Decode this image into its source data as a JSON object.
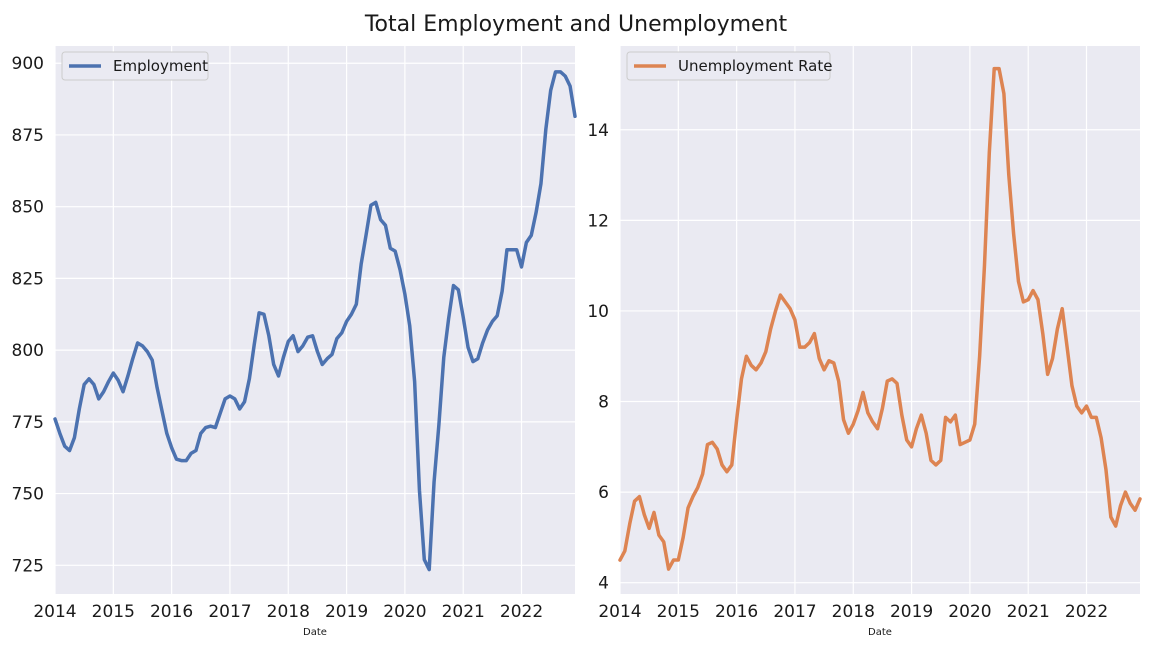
{
  "title": "Total Employment and Unemployment",
  "chart_data": [
    {
      "type": "line",
      "legend_position": "top-left",
      "xlabel": "Date",
      "ylabel": "",
      "grid": true,
      "xlim": [
        2014.0,
        2022.917
      ],
      "ylim": [
        715,
        906
      ],
      "xticks": [
        2014,
        2015,
        2016,
        2017,
        2018,
        2019,
        2020,
        2021,
        2022
      ],
      "xtick_labels": [
        "2014",
        "2015",
        "2016",
        "2017",
        "2018",
        "2019",
        "2020",
        "2021",
        "2022"
      ],
      "yticks": [
        725,
        750,
        775,
        800,
        825,
        850,
        875,
        900
      ],
      "ytick_labels": [
        "725",
        "750",
        "775",
        "800",
        "825",
        "850",
        "875",
        "900"
      ],
      "series": [
        {
          "name": "Employment",
          "color": "#4c72b0",
          "x": [
            2014.0,
            2014.083,
            2014.167,
            2014.25,
            2014.333,
            2014.417,
            2014.5,
            2014.583,
            2014.667,
            2014.75,
            2014.833,
            2014.917,
            2015.0,
            2015.083,
            2015.167,
            2015.25,
            2015.333,
            2015.417,
            2015.5,
            2015.583,
            2015.667,
            2015.75,
            2015.833,
            2015.917,
            2016.0,
            2016.083,
            2016.167,
            2016.25,
            2016.333,
            2016.417,
            2016.5,
            2016.583,
            2016.667,
            2016.75,
            2016.833,
            2016.917,
            2017.0,
            2017.083,
            2017.167,
            2017.25,
            2017.333,
            2017.417,
            2017.5,
            2017.583,
            2017.667,
            2017.75,
            2017.833,
            2017.917,
            2018.0,
            2018.083,
            2018.167,
            2018.25,
            2018.333,
            2018.417,
            2018.5,
            2018.583,
            2018.667,
            2018.75,
            2018.833,
            2018.917,
            2019.0,
            2019.083,
            2019.167,
            2019.25,
            2019.333,
            2019.417,
            2019.5,
            2019.583,
            2019.667,
            2019.75,
            2019.833,
            2019.917,
            2020.0,
            2020.083,
            2020.167,
            2020.25,
            2020.333,
            2020.417,
            2020.5,
            2020.583,
            2020.667,
            2020.75,
            2020.833,
            2020.917,
            2021.0,
            2021.083,
            2021.167,
            2021.25,
            2021.333,
            2021.417,
            2021.5,
            2021.583,
            2021.667,
            2021.75,
            2021.833,
            2021.917,
            2022.0,
            2022.083,
            2022.167,
            2022.25,
            2022.333,
            2022.417,
            2022.5,
            2022.583,
            2022.667,
            2022.75,
            2022.833,
            2022.917
          ],
          "values": [
            776.0,
            771.0,
            766.5,
            765.0,
            769.5,
            779.5,
            788.0,
            790.0,
            788.0,
            783.0,
            785.5,
            789.0,
            792.0,
            789.5,
            785.5,
            791.0,
            797.0,
            802.5,
            801.5,
            799.5,
            796.5,
            787.0,
            779.0,
            771.0,
            766.0,
            762.0,
            761.5,
            761.5,
            764.0,
            765.0,
            771.0,
            773.0,
            773.5,
            773.0,
            778.0,
            783.0,
            784.0,
            783.0,
            779.5,
            782.0,
            790.0,
            802.0,
            813.0,
            812.5,
            805.0,
            795.0,
            791.0,
            797.5,
            803.0,
            805.0,
            799.5,
            801.5,
            804.5,
            805.0,
            799.5,
            795.0,
            797.0,
            798.5,
            804.0,
            806.0,
            810.0,
            812.5,
            816.0,
            830.0,
            840.0,
            850.5,
            851.5,
            845.5,
            843.5,
            835.5,
            834.5,
            828.0,
            819.5,
            808.5,
            789.0,
            751.0,
            727.0,
            723.5,
            754.0,
            774.0,
            797.5,
            811.0,
            822.5,
            821.0,
            811.5,
            801.0,
            796.0,
            797.0,
            802.5,
            807.0,
            810.0,
            812.0,
            820.5,
            835.0,
            835.0,
            835.0,
            829.0,
            837.5,
            840.0,
            848.0,
            858.0,
            877.0,
            890.5,
            897.0,
            897.0,
            895.5,
            892.0,
            881.5
          ]
        }
      ]
    },
    {
      "type": "line",
      "legend_position": "top-left",
      "xlabel": "Date",
      "ylabel": "",
      "grid": true,
      "xlim": [
        2014.0,
        2022.917
      ],
      "ylim": [
        3.75,
        15.85
      ],
      "xticks": [
        2014,
        2015,
        2016,
        2017,
        2018,
        2019,
        2020,
        2021,
        2022
      ],
      "xtick_labels": [
        "2014",
        "2015",
        "2016",
        "2017",
        "2018",
        "2019",
        "2020",
        "2021",
        "2022"
      ],
      "yticks": [
        4,
        6,
        8,
        10,
        12,
        14
      ],
      "ytick_labels": [
        "4",
        "6",
        "8",
        "10",
        "12",
        "14"
      ],
      "series": [
        {
          "name": "Unemployment Rate",
          "color": "#dd8452",
          "x": [
            2014.0,
            2014.083,
            2014.167,
            2014.25,
            2014.333,
            2014.417,
            2014.5,
            2014.583,
            2014.667,
            2014.75,
            2014.833,
            2014.917,
            2015.0,
            2015.083,
            2015.167,
            2015.25,
            2015.333,
            2015.417,
            2015.5,
            2015.583,
            2015.667,
            2015.75,
            2015.833,
            2015.917,
            2016.0,
            2016.083,
            2016.167,
            2016.25,
            2016.333,
            2016.417,
            2016.5,
            2016.583,
            2016.667,
            2016.75,
            2016.833,
            2016.917,
            2017.0,
            2017.083,
            2017.167,
            2017.25,
            2017.333,
            2017.417,
            2017.5,
            2017.583,
            2017.667,
            2017.75,
            2017.833,
            2017.917,
            2018.0,
            2018.083,
            2018.167,
            2018.25,
            2018.333,
            2018.417,
            2018.5,
            2018.583,
            2018.667,
            2018.75,
            2018.833,
            2018.917,
            2019.0,
            2019.083,
            2019.167,
            2019.25,
            2019.333,
            2019.417,
            2019.5,
            2019.583,
            2019.667,
            2019.75,
            2019.833,
            2019.917,
            2020.0,
            2020.083,
            2020.167,
            2020.25,
            2020.333,
            2020.417,
            2020.5,
            2020.583,
            2020.667,
            2020.75,
            2020.833,
            2020.917,
            2021.0,
            2021.083,
            2021.167,
            2021.25,
            2021.333,
            2021.417,
            2021.5,
            2021.583,
            2021.667,
            2021.75,
            2021.833,
            2021.917,
            2022.0,
            2022.083,
            2022.167,
            2022.25,
            2022.333,
            2022.417,
            2022.5,
            2022.583,
            2022.667,
            2022.75,
            2022.833,
            2022.917
          ],
          "values": [
            4.5,
            4.7,
            5.3,
            5.8,
            5.9,
            5.5,
            5.2,
            5.55,
            5.05,
            4.9,
            4.3,
            4.5,
            4.5,
            5.0,
            5.65,
            5.9,
            6.1,
            6.4,
            7.05,
            7.1,
            6.95,
            6.6,
            6.45,
            6.6,
            7.6,
            8.5,
            9.0,
            8.8,
            8.7,
            8.85,
            9.1,
            9.6,
            10.0,
            10.35,
            10.2,
            10.05,
            9.8,
            9.2,
            9.2,
            9.3,
            9.5,
            8.95,
            8.7,
            8.9,
            8.85,
            8.45,
            7.6,
            7.3,
            7.5,
            7.8,
            8.2,
            7.75,
            7.55,
            7.4,
            7.85,
            8.45,
            8.5,
            8.4,
            7.7,
            7.15,
            7.0,
            7.4,
            7.7,
            7.3,
            6.7,
            6.6,
            6.7,
            7.65,
            7.55,
            7.7,
            7.05,
            7.1,
            7.15,
            7.5,
            9.0,
            11.0,
            13.5,
            15.35,
            15.35,
            14.8,
            13.0,
            11.7,
            10.65,
            10.2,
            10.25,
            10.45,
            10.25,
            9.5,
            8.6,
            8.95,
            9.6,
            10.05,
            9.2,
            8.35,
            7.9,
            7.75,
            7.9,
            7.65,
            7.65,
            7.2,
            6.5,
            5.45,
            5.25,
            5.7,
            6.0,
            5.75,
            5.6,
            5.85
          ]
        }
      ]
    }
  ]
}
